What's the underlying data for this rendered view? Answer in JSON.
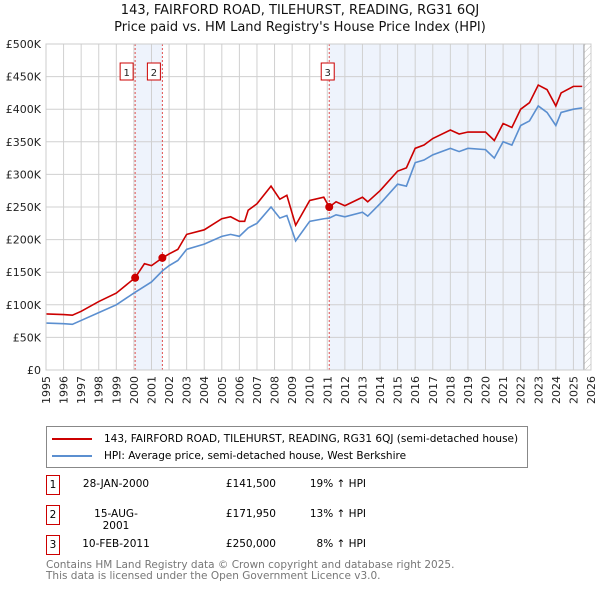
{
  "chart_data": {
    "type": "line",
    "title": "143, FAIRFORD ROAD, TILEHURST, READING, RG31 6QJ",
    "subtitle": "Price paid vs. HM Land Registry's House Price Index (HPI)",
    "xlim": [
      1995,
      2026
    ],
    "ylim": [
      0,
      500000
    ],
    "x_ticks": [
      "1995",
      "1996",
      "1997",
      "1998",
      "1999",
      "2000",
      "2001",
      "2002",
      "2003",
      "2004",
      "2005",
      "2006",
      "2007",
      "2008",
      "2009",
      "2010",
      "2011",
      "2012",
      "2013",
      "2014",
      "2015",
      "2016",
      "2017",
      "2018",
      "2019",
      "2020",
      "2021",
      "2022",
      "2023",
      "2024",
      "2025",
      "2026"
    ],
    "y_ticks": [
      {
        "v": 0,
        "label": "£0"
      },
      {
        "v": 50000,
        "label": "£50K"
      },
      {
        "v": 100000,
        "label": "£100K"
      },
      {
        "v": 150000,
        "label": "£150K"
      },
      {
        "v": 200000,
        "label": "£200K"
      },
      {
        "v": 250000,
        "label": "£250K"
      },
      {
        "v": 300000,
        "label": "£300K"
      },
      {
        "v": 350000,
        "label": "£350K"
      },
      {
        "v": 400000,
        "label": "£400K"
      },
      {
        "v": 450000,
        "label": "£450K"
      },
      {
        "v": 500000,
        "label": "£500K"
      }
    ],
    "grid": true,
    "series": [
      {
        "name": "143, FAIRFORD ROAD, TILEHURST, READING, RG31 6QJ (semi-detached house)",
        "color": "#cc0000",
        "x": [
          1995,
          1996,
          1996.5,
          1997,
          1998,
          1999,
          2000.07,
          2000.6,
          2001,
          2001.62,
          2002,
          2002.5,
          2003,
          2004,
          2005,
          2005.5,
          2006,
          2006.3,
          2006.5,
          2007,
          2007.8,
          2008.3,
          2008.7,
          2009.2,
          2010,
          2010.8,
          2011.11,
          2011.5,
          2012,
          2013,
          2013.3,
          2014,
          2015,
          2015.5,
          2016,
          2016.5,
          2017,
          2018,
          2018.5,
          2019,
          2020,
          2020.5,
          2021,
          2021.5,
          2022,
          2022.5,
          2023,
          2023.5,
          2024,
          2024.3,
          2025,
          2025.5
        ],
        "y": [
          86000,
          85000,
          84000,
          90000,
          105000,
          118000,
          141500,
          163000,
          160000,
          171950,
          178000,
          185000,
          208000,
          215000,
          232000,
          235000,
          228000,
          228000,
          245000,
          255000,
          282000,
          262000,
          268000,
          222000,
          260000,
          265000,
          250000,
          258000,
          252000,
          265000,
          258000,
          275000,
          305000,
          310000,
          340000,
          345000,
          355000,
          368000,
          362000,
          365000,
          365000,
          352000,
          378000,
          372000,
          400000,
          410000,
          437000,
          430000,
          405000,
          425000,
          435000,
          435000
        ]
      },
      {
        "name": "HPI: Average price, semi-detached house, West Berkshire",
        "color": "#5b8fd0",
        "x": [
          1995,
          1996,
          1996.5,
          1997,
          1998,
          1999,
          2000,
          2001,
          2001.62,
          2002,
          2002.5,
          2003,
          2004,
          2005,
          2005.5,
          2006,
          2006.5,
          2007,
          2007.8,
          2008.3,
          2008.7,
          2009.2,
          2010,
          2010.8,
          2011.11,
          2011.5,
          2012,
          2013,
          2013.3,
          2014,
          2015,
          2015.5,
          2016,
          2016.5,
          2017,
          2018,
          2018.5,
          2019,
          2020,
          2020.5,
          2021,
          2021.5,
          2022,
          2022.5,
          2023,
          2023.5,
          2024,
          2024.3,
          2025,
          2025.5
        ],
        "y": [
          72000,
          71000,
          70000,
          76000,
          88000,
          100000,
          118000,
          135000,
          152000,
          160000,
          168000,
          185000,
          193000,
          205000,
          208000,
          205000,
          218000,
          225000,
          250000,
          233000,
          237000,
          198000,
          228000,
          232000,
          233000,
          238000,
          235000,
          242000,
          236000,
          255000,
          285000,
          282000,
          318000,
          322000,
          330000,
          340000,
          335000,
          340000,
          338000,
          325000,
          350000,
          345000,
          375000,
          382000,
          405000,
          395000,
          375000,
          395000,
          400000,
          402000
        ]
      }
    ],
    "sales": [
      {
        "label": "1",
        "x": 2000.07,
        "y": 141500,
        "date": "28-JAN-2000",
        "price": "£141,500",
        "hpi": "19% ↑ HPI"
      },
      {
        "label": "2",
        "x": 2001.62,
        "y": 171950,
        "date": "15-AUG-2001",
        "price": "£171,950",
        "hpi": "13% ↑ HPI"
      },
      {
        "label": "3",
        "x": 2011.11,
        "y": 250000,
        "date": "10-FEB-2011",
        "price": "£250,000",
        "hpi": "8% ↑ HPI"
      }
    ],
    "shaded": [
      [
        2000.07,
        2001.62
      ],
      [
        2011.11,
        2025.6
      ]
    ],
    "hatched_from": 2025.6,
    "legend_placement": "below"
  },
  "footer": {
    "line1": "Contains HM Land Registry data © Crown copyright and database right 2025.",
    "line2": "This data is licensed under the Open Government Licence v3.0."
  }
}
